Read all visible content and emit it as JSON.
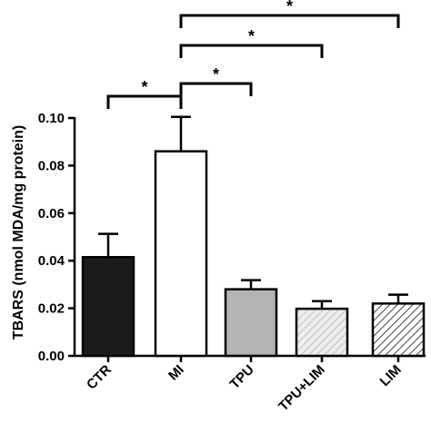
{
  "chart_data": {
    "type": "bar",
    "categories": [
      "CTR",
      "MI",
      "TPU",
      "TPU+LIM",
      "LIM"
    ],
    "values": [
      0.0415,
      0.086,
      0.028,
      0.0198,
      0.022
    ],
    "errors": [
      0.0098,
      0.0145,
      0.0038,
      0.0032,
      0.0037
    ],
    "bar_styles": [
      "solid-black",
      "white",
      "solid-gray",
      "hatch-light",
      "hatch-dark"
    ],
    "colors": {
      "solid-black": "#1a1a1a",
      "white": "#ffffff",
      "solid-gray": "#b3b3b3",
      "hatch-light": "#c8c8c8",
      "hatch-dark": "#1a1a1a"
    },
    "title": "",
    "xlabel": "",
    "ylabel": "TBARS (nmol MDA/mg protein)",
    "ylim": [
      0,
      0.1
    ],
    "yticks": [
      "0.00",
      "0.02",
      "0.04",
      "0.06",
      "0.08",
      "0.10"
    ],
    "grid": false,
    "legend": "none",
    "significance": [
      {
        "from": "CTR",
        "to": "MI",
        "label": "*"
      },
      {
        "from": "MI",
        "to": "TPU",
        "label": "*"
      },
      {
        "from": "MI",
        "to": "TPU+LIM",
        "label": "*"
      },
      {
        "from": "MI",
        "to": "LIM",
        "label": "*"
      }
    ]
  }
}
